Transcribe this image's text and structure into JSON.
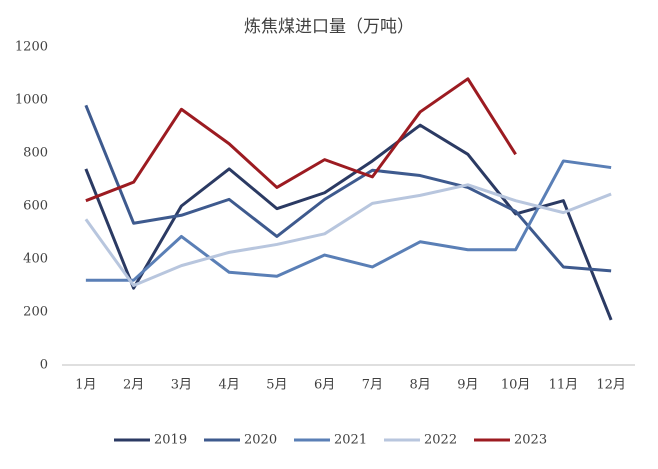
{
  "chart_data": {
    "type": "line",
    "title": "炼焦煤进口量（万吨）",
    "categories": [
      "1月",
      "2月",
      "3月",
      "4月",
      "5月",
      "6月",
      "7月",
      "8月",
      "9月",
      "10月",
      "11月",
      "12月"
    ],
    "series": [
      {
        "name": "2019",
        "color": "#2b3a63",
        "values": [
          740,
          290,
          600,
          740,
          590,
          650,
          770,
          905,
          795,
          570,
          620,
          170
        ]
      },
      {
        "name": "2020",
        "color": "#3e5a8e",
        "values": [
          980,
          535,
          565,
          625,
          485,
          625,
          735,
          715,
          670,
          580,
          370,
          355
        ]
      },
      {
        "name": "2021",
        "color": "#5a7fb6",
        "values": [
          320,
          320,
          485,
          350,
          335,
          415,
          370,
          465,
          435,
          435,
          770,
          745
        ]
      },
      {
        "name": "2022",
        "color": "#b8c6de",
        "values": [
          550,
          300,
          375,
          425,
          455,
          495,
          610,
          640,
          680,
          620,
          575,
          645
        ]
      },
      {
        "name": "2023",
        "color": "#9c1b21",
        "values": [
          620,
          690,
          965,
          835,
          670,
          775,
          710,
          955,
          1080,
          795,
          null,
          null
        ]
      }
    ],
    "ylim": [
      0,
      1200
    ],
    "yticks": [
      0,
      200,
      400,
      600,
      800,
      1000,
      1200
    ],
    "grid": false,
    "legend": "bottom"
  }
}
